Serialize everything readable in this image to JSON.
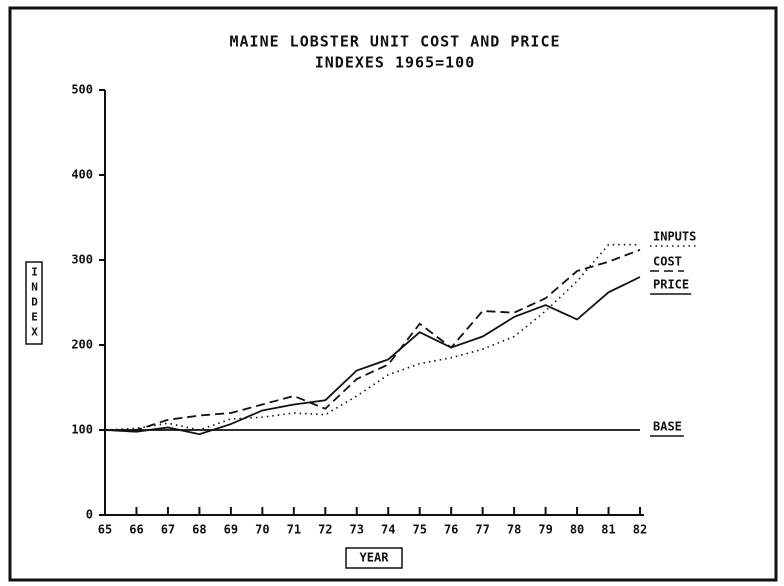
{
  "chart_data": {
    "type": "line",
    "title": "MAINE LOBSTER UNIT COST AND PRICE",
    "subtitle": "INDEXES 1965=100",
    "xlabel": "YEAR",
    "ylabel": "INDEX",
    "categories": [
      "65",
      "66",
      "67",
      "68",
      "69",
      "70",
      "71",
      "72",
      "73",
      "74",
      "75",
      "76",
      "77",
      "78",
      "79",
      "80",
      "81",
      "82"
    ],
    "ylim": [
      0,
      500
    ],
    "yticks": [
      0,
      100,
      200,
      300,
      400,
      500
    ],
    "series": [
      {
        "name": "INPUTS",
        "color": "#111111",
        "dash": "dotted",
        "values": [
          100,
          102,
          108,
          100,
          113,
          115,
          120,
          118,
          140,
          165,
          178,
          185,
          195,
          210,
          240,
          275,
          318,
          318
        ]
      },
      {
        "name": "COST",
        "color": "#111111",
        "dash": "dashed",
        "values": [
          100,
          100,
          112,
          117,
          120,
          130,
          140,
          125,
          160,
          177,
          225,
          197,
          240,
          238,
          255,
          287,
          298,
          312
        ]
      },
      {
        "name": "PRICE",
        "color": "#111111",
        "dash": "solid",
        "values": [
          100,
          98,
          103,
          95,
          107,
          123,
          130,
          135,
          170,
          183,
          215,
          197,
          210,
          233,
          247,
          230,
          262,
          280
        ]
      },
      {
        "name": "BASE",
        "color": "#111111",
        "dash": "solid",
        "values": [
          100,
          100,
          100,
          100,
          100,
          100,
          100,
          100,
          100,
          100,
          100,
          100,
          100,
          100,
          100,
          100,
          100,
          100
        ]
      }
    ]
  }
}
